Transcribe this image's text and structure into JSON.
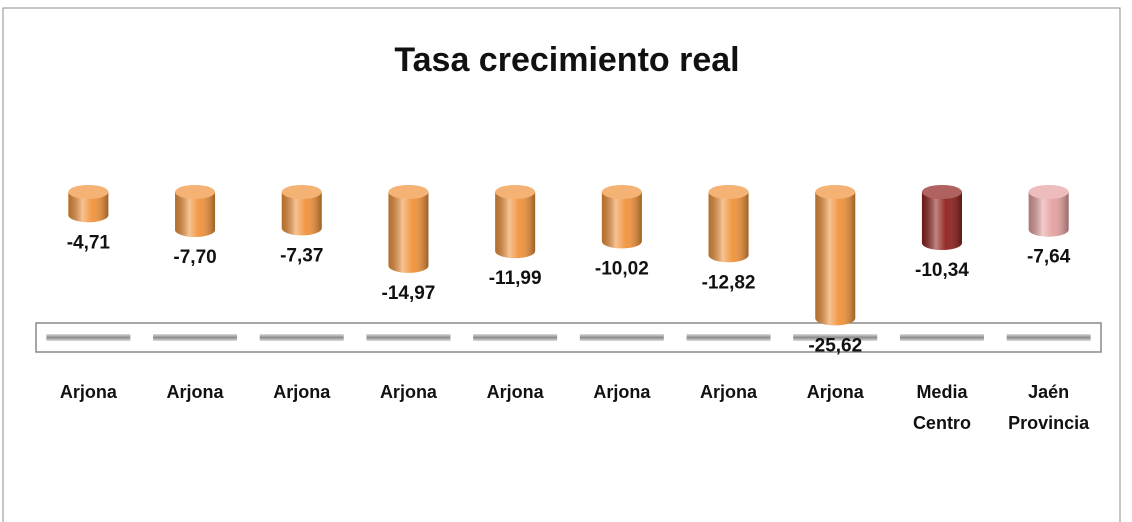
{
  "chart_data": {
    "type": "bar",
    "title": "Tasa crecimiento real",
    "categories": [
      "Arjona",
      "Arjona",
      "Arjona",
      "Arjona",
      "Arjona",
      "Arjona",
      "Arjona",
      "Arjona",
      "Media Centro",
      "Jaén Provincia"
    ],
    "values": [
      -4.71,
      -7.7,
      -7.37,
      -14.97,
      -11.99,
      -10.02,
      -12.82,
      -25.62,
      -10.34,
      -7.64
    ],
    "value_labels": [
      "-4,71",
      "-7,70",
      "-7,37",
      "-14,97",
      "-11,99",
      "-10,02",
      "-12,82",
      "-25,62",
      "-10,34",
      "-7,64"
    ],
    "colors": [
      "#f0923a",
      "#f0923a",
      "#f0923a",
      "#f0923a",
      "#f0923a",
      "#f0923a",
      "#f0923a",
      "#f0923a",
      "#8e1f1c",
      "#e6a0a0"
    ],
    "ylim": [
      -30,
      0
    ]
  }
}
